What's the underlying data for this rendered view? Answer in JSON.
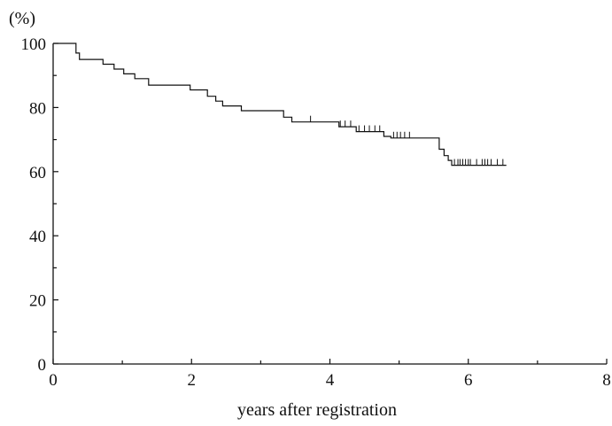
{
  "chart_data": {
    "type": "line",
    "subtype": "kaplan-meier-step",
    "title": "",
    "xlabel": "years after registration",
    "ylabel": "(%)",
    "xlim": [
      0,
      8
    ],
    "ylim": [
      0,
      100
    ],
    "x_ticks": [
      0,
      2,
      4,
      6,
      8
    ],
    "y_ticks": [
      0,
      20,
      40,
      60,
      80,
      100
    ],
    "grid": false,
    "legend": "none",
    "series": [
      {
        "steps": [
          [
            0,
            100
          ],
          [
            0.28,
            100
          ],
          [
            0.33,
            97
          ],
          [
            0.38,
            95
          ],
          [
            0.7,
            95
          ],
          [
            0.72,
            93.5
          ],
          [
            0.85,
            93.5
          ],
          [
            0.88,
            92
          ],
          [
            1.0,
            92
          ],
          [
            1.02,
            90.5
          ],
          [
            1.15,
            90.5
          ],
          [
            1.18,
            89
          ],
          [
            1.35,
            89
          ],
          [
            1.38,
            87
          ],
          [
            1.95,
            87
          ],
          [
            1.98,
            85.5
          ],
          [
            2.2,
            85.5
          ],
          [
            2.23,
            83.5
          ],
          [
            2.32,
            83.5
          ],
          [
            2.35,
            82
          ],
          [
            2.42,
            82
          ],
          [
            2.45,
            80.5
          ],
          [
            2.7,
            80.5
          ],
          [
            2.72,
            79
          ],
          [
            3.3,
            79
          ],
          [
            3.33,
            77
          ],
          [
            3.42,
            77
          ],
          [
            3.45,
            75.5
          ],
          [
            4.1,
            75.5
          ],
          [
            4.13,
            74
          ],
          [
            4.35,
            74
          ],
          [
            4.38,
            72.5
          ],
          [
            4.75,
            72.5
          ],
          [
            4.78,
            71
          ],
          [
            4.85,
            71
          ],
          [
            4.88,
            70.5
          ],
          [
            5.55,
            70.5
          ],
          [
            5.58,
            67
          ],
          [
            5.62,
            67
          ],
          [
            5.65,
            65
          ],
          [
            5.68,
            65
          ],
          [
            5.71,
            63.5
          ],
          [
            5.73,
            63.5
          ],
          [
            5.76,
            62
          ],
          [
            6.55,
            62
          ]
        ],
        "censored": [
          [
            3.72,
            75.5
          ],
          [
            4.15,
            74
          ],
          [
            4.22,
            74
          ],
          [
            4.3,
            74
          ],
          [
            4.42,
            72.5
          ],
          [
            4.5,
            72.5
          ],
          [
            4.57,
            72.5
          ],
          [
            4.65,
            72.5
          ],
          [
            4.72,
            72.5
          ],
          [
            4.92,
            70.5
          ],
          [
            4.97,
            70.5
          ],
          [
            5.02,
            70.5
          ],
          [
            5.08,
            70.5
          ],
          [
            5.15,
            70.5
          ],
          [
            5.8,
            62
          ],
          [
            5.85,
            62
          ],
          [
            5.88,
            62
          ],
          [
            5.92,
            62
          ],
          [
            5.96,
            62
          ],
          [
            6.0,
            62
          ],
          [
            6.03,
            62
          ],
          [
            6.12,
            62
          ],
          [
            6.2,
            62
          ],
          [
            6.24,
            62
          ],
          [
            6.28,
            62
          ],
          [
            6.33,
            62
          ],
          [
            6.42,
            62
          ],
          [
            6.5,
            62
          ]
        ]
      }
    ]
  },
  "colors": {
    "axis": "#111111",
    "line": "#111111",
    "background": "#ffffff"
  }
}
